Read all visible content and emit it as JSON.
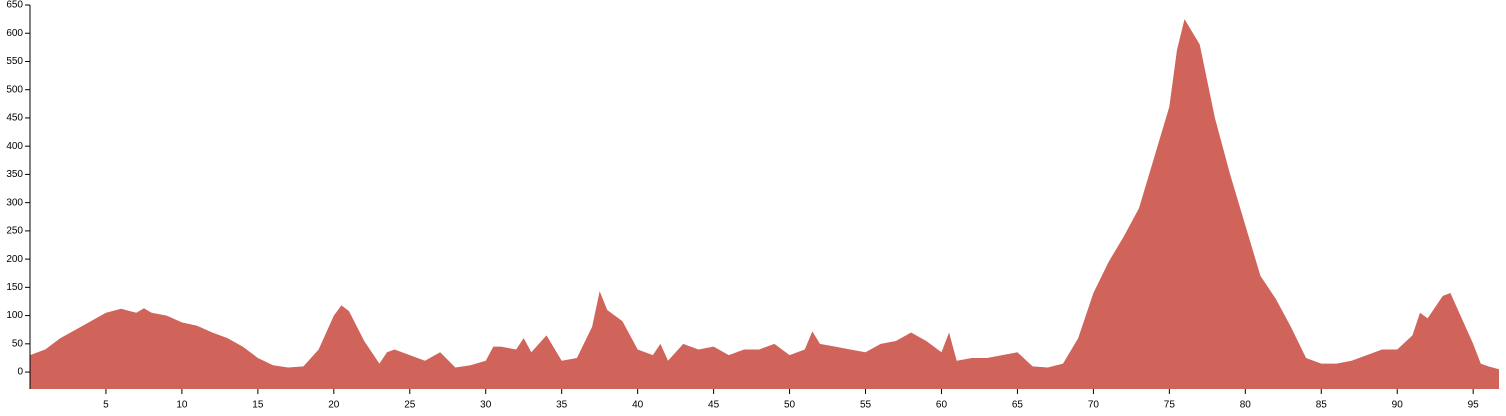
{
  "chart_data": {
    "type": "area",
    "x": [
      0,
      1,
      2,
      3,
      4,
      5,
      6,
      7,
      7.5,
      8,
      9,
      10,
      11,
      12,
      13,
      14,
      15,
      16,
      17,
      18,
      19,
      20,
      20.5,
      21,
      22,
      23,
      23.5,
      24,
      25,
      26,
      27,
      28,
      29,
      30,
      30.5,
      31,
      32,
      32.5,
      33,
      34,
      35,
      36,
      37,
      37.5,
      38,
      39,
      40,
      41,
      41.5,
      42,
      43,
      44,
      45,
      46,
      47,
      48,
      49,
      50,
      51,
      51.5,
      52,
      53,
      54,
      55,
      56,
      57,
      58,
      59,
      60,
      60.5,
      61,
      62,
      63,
      64,
      65,
      66,
      67,
      68,
      69,
      70,
      71,
      72,
      73,
      74,
      75,
      75.5,
      76,
      77,
      78,
      79,
      80,
      81,
      82,
      83,
      84,
      85,
      86,
      87,
      88,
      89,
      90,
      91,
      91.5,
      92,
      93,
      93.5,
      94,
      95,
      95.5,
      96,
      96.7
    ],
    "values": [
      30,
      40,
      60,
      75,
      90,
      105,
      112,
      105,
      113,
      105,
      100,
      88,
      82,
      70,
      60,
      45,
      25,
      12,
      8,
      10,
      40,
      100,
      118,
      108,
      55,
      15,
      35,
      40,
      30,
      20,
      35,
      8,
      12,
      20,
      45,
      45,
      40,
      60,
      35,
      65,
      20,
      25,
      80,
      143,
      110,
      90,
      40,
      30,
      50,
      20,
      50,
      40,
      45,
      30,
      40,
      40,
      50,
      30,
      40,
      72,
      50,
      45,
      40,
      35,
      50,
      55,
      70,
      55,
      35,
      70,
      20,
      25,
      25,
      30,
      35,
      10,
      8,
      15,
      60,
      140,
      195,
      240,
      290,
      380,
      470,
      570,
      625,
      580,
      450,
      350,
      260,
      170,
      130,
      80,
      25,
      15,
      15,
      20,
      30,
      40,
      40,
      65,
      105,
      95,
      135,
      140,
      110,
      50,
      15,
      10,
      5
    ],
    "color": "#d0645a",
    "xlim": [
      0,
      96.7
    ],
    "ylim": [
      -30,
      650
    ],
    "xticks": [
      5,
      10,
      15,
      20,
      25,
      30,
      35,
      40,
      45,
      50,
      55,
      60,
      65,
      70,
      75,
      80,
      85,
      90,
      95
    ],
    "yticks": [
      0,
      50,
      100,
      150,
      200,
      250,
      300,
      350,
      400,
      450,
      500,
      550,
      600,
      650
    ]
  }
}
